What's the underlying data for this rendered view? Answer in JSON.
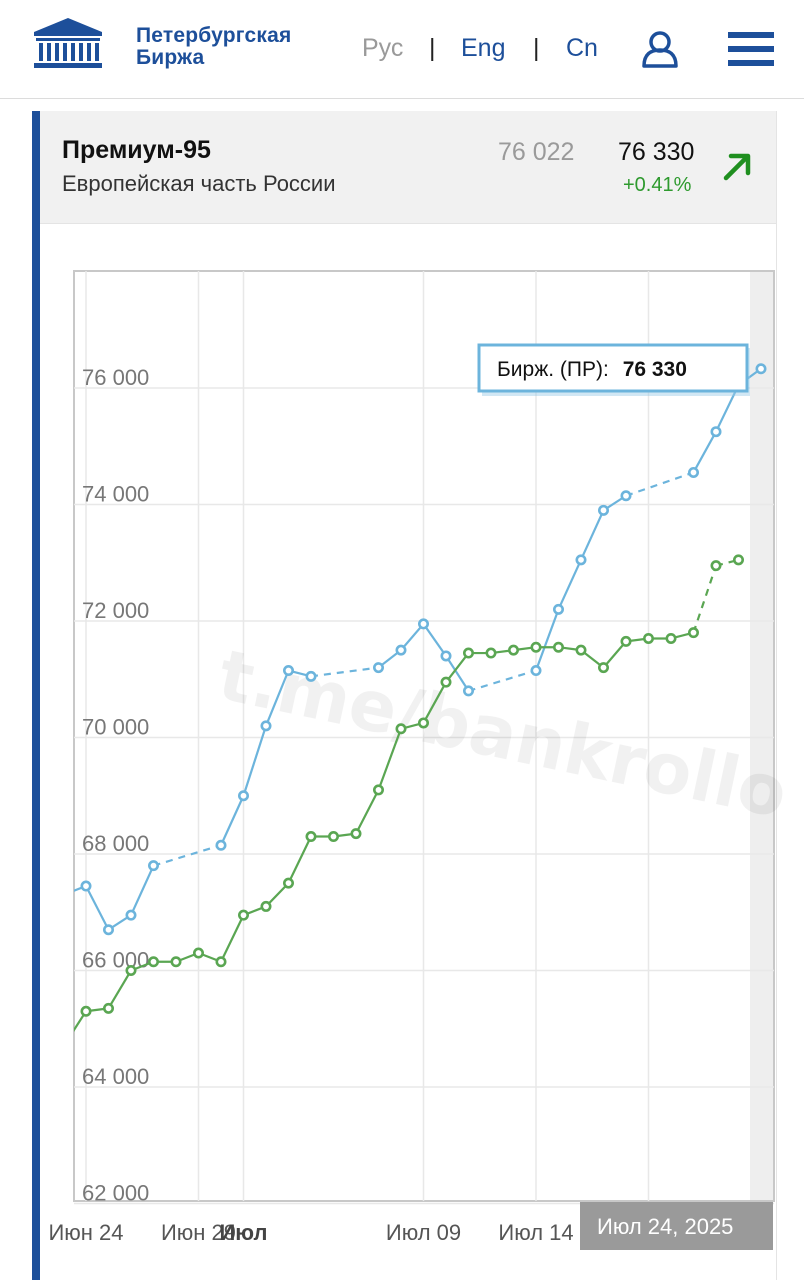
{
  "header": {
    "logo_line1": "Петербургская",
    "logo_line2": "Биржа",
    "lang_ru": "Рус",
    "lang_en": "Eng",
    "lang_cn": "Cn",
    "separator": "|",
    "icons": [
      "exchange-building-logo-icon",
      "user-icon",
      "hamburger-menu-icon"
    ],
    "accent_color": "#1d4f9a"
  },
  "card": {
    "title": "Премиум-95",
    "region": "Европейская часть России",
    "prev_price": "76 022",
    "price": "76 330",
    "change": "+0.41%",
    "trend_icon": "arrow-up-right-icon",
    "positive_color": "#2e9a2e"
  },
  "chart_data": {
    "type": "line",
    "y_ticks": [
      "76 000",
      "74 000",
      "72 000",
      "70 000",
      "68 000",
      "66 000",
      "64 000",
      "62 000"
    ],
    "y_tick_values": [
      76000,
      74000,
      72000,
      70000,
      68000,
      66000,
      64000,
      62000
    ],
    "ylim": [
      62000,
      78000
    ],
    "x_ticks": [
      "Июн 24",
      "Июн 29",
      "Июл",
      "Июл 09",
      "Июл 14"
    ],
    "x_tick_bold": "Июл",
    "x_tick_dates": [
      "2025-06-24",
      "2025-06-29",
      "2025-07-01",
      "2025-07-09",
      "2025-07-14"
    ],
    "grid": true,
    "tooltip": {
      "label": "Бирж. (ПР):",
      "value": "76 330"
    },
    "date_badge": "Июл 24, 2025",
    "watermark": "t.me/bankrollo",
    "series": [
      {
        "color": "#6cb4dc",
        "points": [
          [
            "2025-06-23",
            67300
          ],
          [
            "2025-06-24",
            67450
          ],
          [
            "2025-06-25",
            66700
          ],
          [
            "2025-06-26",
            66950
          ],
          [
            "2025-06-27",
            67800
          ],
          [
            "2025-06-30",
            68150
          ],
          [
            "2025-07-01",
            69000
          ],
          [
            "2025-07-02",
            70200
          ],
          [
            "2025-07-03",
            71150
          ],
          [
            "2025-07-04",
            71050
          ],
          [
            "2025-07-07",
            71200
          ],
          [
            "2025-07-08",
            71500
          ],
          [
            "2025-07-09",
            71950
          ],
          [
            "2025-07-10",
            71400
          ],
          [
            "2025-07-11",
            70800
          ],
          [
            "2025-07-14",
            71150
          ],
          [
            "2025-07-15",
            72200
          ],
          [
            "2025-07-16",
            73050
          ],
          [
            "2025-07-17",
            73900
          ],
          [
            "2025-07-18",
            74150
          ],
          [
            "2025-07-21",
            74550
          ],
          [
            "2025-07-22",
            75250
          ],
          [
            "2025-07-23",
            76050
          ],
          [
            "2025-07-24",
            76330
          ]
        ],
        "dashed_gaps_after": [
          "2025-06-27",
          "2025-07-04",
          "2025-07-11",
          "2025-07-18"
        ]
      },
      {
        "color": "#5aa652",
        "points": [
          [
            "2025-06-23",
            64700
          ],
          [
            "2025-06-24",
            65300
          ],
          [
            "2025-06-25",
            65350
          ],
          [
            "2025-06-26",
            66000
          ],
          [
            "2025-06-27",
            66150
          ],
          [
            "2025-06-28",
            66150
          ],
          [
            "2025-06-29",
            66300
          ],
          [
            "2025-06-30",
            66150
          ],
          [
            "2025-07-01",
            66950
          ],
          [
            "2025-07-02",
            67100
          ],
          [
            "2025-07-03",
            67500
          ],
          [
            "2025-07-04",
            68300
          ],
          [
            "2025-07-05",
            68300
          ],
          [
            "2025-07-06",
            68350
          ],
          [
            "2025-07-07",
            69100
          ],
          [
            "2025-07-08",
            70150
          ],
          [
            "2025-07-09",
            70250
          ],
          [
            "2025-07-10",
            70950
          ],
          [
            "2025-07-11",
            71450
          ],
          [
            "2025-07-12",
            71450
          ],
          [
            "2025-07-13",
            71500
          ],
          [
            "2025-07-14",
            71550
          ],
          [
            "2025-07-15",
            71550
          ],
          [
            "2025-07-16",
            71500
          ],
          [
            "2025-07-17",
            71200
          ],
          [
            "2025-07-18",
            71650
          ],
          [
            "2025-07-19",
            71700
          ],
          [
            "2025-07-20",
            71700
          ],
          [
            "2025-07-21",
            71800
          ],
          [
            "2025-07-22",
            72950
          ],
          [
            "2025-07-23",
            73050
          ]
        ],
        "dashed_gaps_after": [
          "2025-07-21",
          "2025-07-22"
        ]
      }
    ]
  }
}
